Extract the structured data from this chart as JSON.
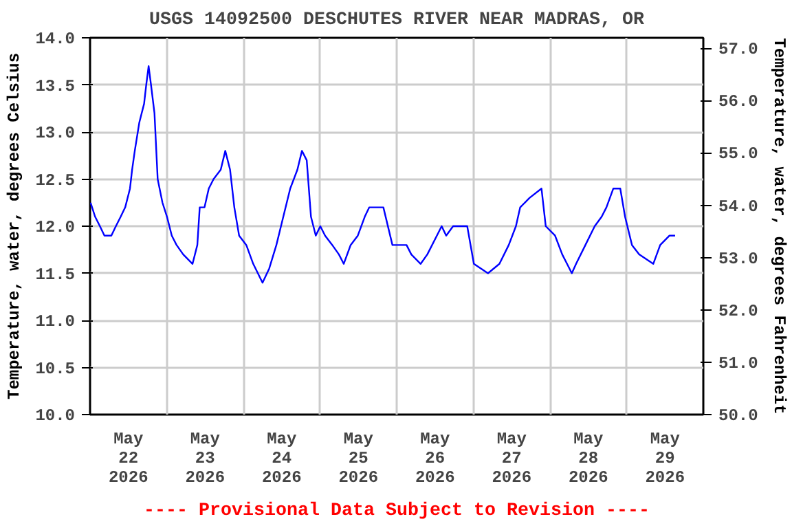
{
  "chart_data": {
    "type": "line",
    "title": "USGS 14092500 DESCHUTES RIVER NEAR MADRAS, OR",
    "ylabel": "Temperature, water, degrees Celsius",
    "y2label": "Temperature, water, degrees Fahrenheit",
    "annotations": [
      "---- Provisional Data Subject to Revision ----"
    ],
    "x": [
      "2026-05-22T00:10",
      "2026-05-22T01:35",
      "2026-05-22T03:05",
      "2026-05-22T04:30",
      "2026-05-22T06:40",
      "2026-05-22T08:05",
      "2026-05-22T09:35",
      "2026-05-22T11:00",
      "2026-05-22T12:30",
      "2026-05-22T13:10",
      "2026-05-22T14:00",
      "2026-05-22T15:25",
      "2026-05-22T16:55",
      "2026-05-22T17:35",
      "2026-05-22T18:20",
      "2026-05-22T19:05",
      "2026-05-22T20:10",
      "2026-05-22T21:10",
      "2026-05-22T22:40",
      "2026-05-23T00:05",
      "2026-05-23T01:35",
      "2026-05-23T03:05",
      "2026-05-23T05:10",
      "2026-05-23T08:05",
      "2026-05-23T09:35",
      "2026-05-23T10:20",
      "2026-05-23T11:50",
      "2026-05-23T13:10",
      "2026-05-23T14:40",
      "2026-05-23T16:55",
      "2026-05-23T18:20",
      "2026-05-23T19:50",
      "2026-05-23T21:10",
      "2026-05-23T22:40",
      "2026-05-24T00:55",
      "2026-05-24T03:05",
      "2026-05-24T06:00",
      "2026-05-24T08:05",
      "2026-05-24T10:20",
      "2026-05-24T12:30",
      "2026-05-24T14:40",
      "2026-05-24T16:55",
      "2026-05-24T18:20",
      "2026-05-24T19:50",
      "2026-05-24T21:10",
      "2026-05-24T22:40",
      "2026-05-25T00:05",
      "2026-05-25T01:35",
      "2026-05-25T03:50",
      "2026-05-25T05:55",
      "2026-05-25T07:25",
      "2026-05-25T09:35",
      "2026-05-25T11:50",
      "2026-05-25T14:00",
      "2026-05-25T15:25",
      "2026-05-25T17:35",
      "2026-05-25T19:50",
      "2026-05-25T22:40",
      "2026-05-26T03:05",
      "2026-05-26T04:35",
      "2026-05-26T07:30",
      "2026-05-26T09:35",
      "2026-05-26T12:35",
      "2026-05-26T14:05",
      "2026-05-26T15:30",
      "2026-05-26T17:40",
      "2026-05-26T22:05",
      "2026-05-27T00:10",
      "2026-05-27T04:35",
      "2026-05-27T08:10",
      "2026-05-27T11:05",
      "2026-05-27T13:20",
      "2026-05-27T14:40",
      "2026-05-27T17:35",
      "2026-05-27T21:20",
      "2026-05-27T22:40",
      "2026-05-28T01:35",
      "2026-05-28T03:50",
      "2026-05-28T05:20",
      "2026-05-28T06:50",
      "2026-05-28T08:10",
      "2026-05-28T11:05",
      "2026-05-28T14:00",
      "2026-05-28T16:10",
      "2026-05-28T17:40",
      "2026-05-28T19:50",
      "2026-05-28T22:00",
      "2026-05-28T23:30",
      "2026-05-29T01:40",
      "2026-05-29T03:55",
      "2026-05-29T08:20",
      "2026-05-29T10:30",
      "2026-05-29T13:25",
      "2026-05-29T15:10"
    ],
    "series": [
      {
        "color": "#0000ff",
        "values": [
          12.25,
          12.1,
          12.0,
          11.9,
          11.9,
          12.0,
          12.1,
          12.2,
          12.4,
          12.6,
          12.8,
          13.1,
          13.3,
          13.5,
          13.7,
          13.5,
          13.2,
          12.5,
          12.25,
          12.1,
          11.9,
          11.8,
          11.7,
          11.6,
          11.8,
          12.2,
          12.2,
          12.4,
          12.5,
          12.6,
          12.8,
          12.6,
          12.2,
          11.9,
          11.8,
          11.6,
          11.4,
          11.55,
          11.8,
          12.1,
          12.4,
          12.6,
          12.8,
          12.7,
          12.1,
          11.9,
          12.0,
          11.9,
          11.8,
          11.7,
          11.6,
          11.8,
          11.9,
          12.1,
          12.2,
          12.2,
          12.2,
          11.8,
          11.8,
          11.7,
          11.6,
          11.7,
          11.9,
          12.0,
          11.9,
          12.0,
          12.0,
          11.6,
          11.5,
          11.6,
          11.8,
          12.0,
          12.2,
          12.3,
          12.4,
          12.0,
          11.9,
          11.7,
          11.6,
          11.5,
          11.6,
          11.8,
          12.0,
          12.1,
          12.2,
          12.4,
          12.4,
          12.1,
          11.8,
          11.7,
          11.6,
          11.8,
          11.9,
          11.9
        ]
      }
    ],
    "xlim": [
      "2026-05-22T00:00",
      "2026-05-30T00:00"
    ],
    "xticks": [
      {
        "value": "2026-05-22T00:00",
        "label": null
      },
      {
        "value": "2026-05-23T00:00",
        "label": null
      },
      {
        "value": "2026-05-24T00:00",
        "label": null
      },
      {
        "value": "2026-05-25T00:00",
        "label": null
      },
      {
        "value": "2026-05-26T00:00",
        "label": null
      },
      {
        "value": "2026-05-27T00:00",
        "label": null
      },
      {
        "value": "2026-05-28T00:00",
        "label": null
      },
      {
        "value": "2026-05-29T00:00",
        "label": null
      },
      {
        "value": "2026-05-22T12:00",
        "label": "May\n22\n2026"
      },
      {
        "value": "2026-05-23T12:00",
        "label": "May\n23\n2026"
      },
      {
        "value": "2026-05-24T12:00",
        "label": "May\n24\n2026"
      },
      {
        "value": "2026-05-25T12:00",
        "label": "May\n25\n2026"
      },
      {
        "value": "2026-05-26T12:00",
        "label": "May\n26\n2026"
      },
      {
        "value": "2026-05-27T12:00",
        "label": "May\n27\n2026"
      },
      {
        "value": "2026-05-28T12:00",
        "label": "May\n28\n2026"
      },
      {
        "value": "2026-05-29T12:00",
        "label": "May\n29\n2026"
      }
    ],
    "ylim": [
      10.0,
      14.0
    ],
    "yticks": [
      {
        "value": 10,
        "label": "10.0"
      },
      {
        "value": 10.5,
        "label": "10.5"
      },
      {
        "value": 11,
        "label": "11.0"
      },
      {
        "value": 11.5,
        "label": "11.5"
      },
      {
        "value": 12,
        "label": "12.0"
      },
      {
        "value": 12.5,
        "label": "12.5"
      },
      {
        "value": 13,
        "label": "13.0"
      },
      {
        "value": 13.5,
        "label": "13.5"
      },
      {
        "value": 14,
        "label": "14.0"
      }
    ],
    "y2lim": [
      50.0,
      57.2
    ],
    "y2ticks": [
      {
        "value": 50,
        "label": "50.0"
      },
      {
        "value": 51,
        "label": "51.0"
      },
      {
        "value": 52,
        "label": "52.0"
      },
      {
        "value": 53,
        "label": "53.0"
      },
      {
        "value": 54,
        "label": "54.0"
      },
      {
        "value": 55,
        "label": "55.0"
      },
      {
        "value": 56,
        "label": "56.0"
      },
      {
        "value": 57,
        "label": "57.0"
      }
    ],
    "grid": true
  }
}
